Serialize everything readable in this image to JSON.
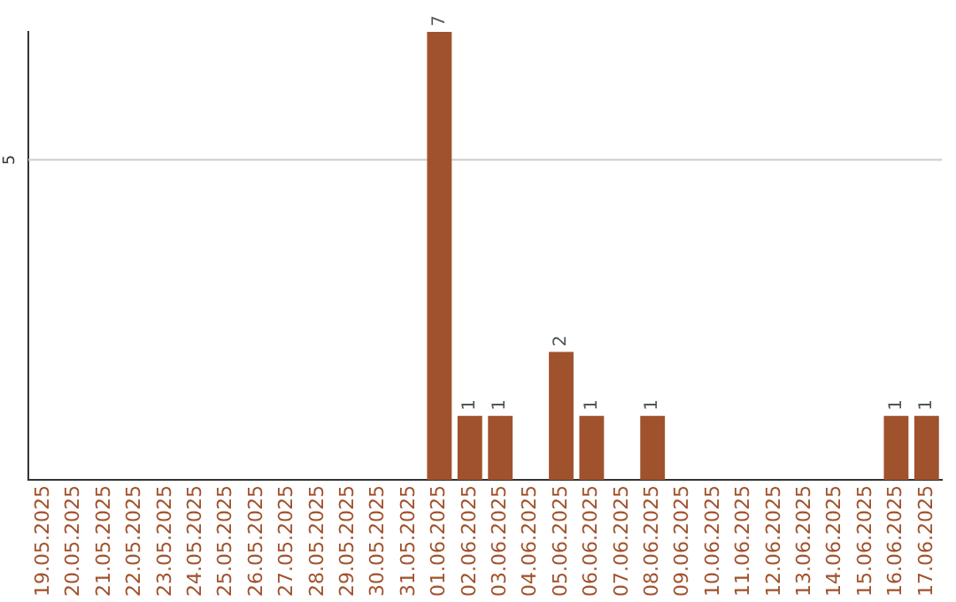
{
  "chart_data": {
    "type": "bar",
    "categories": [
      "19.05.2025",
      "20.05.2025",
      "21.05.2025",
      "22.05.2025",
      "23.05.2025",
      "24.05.2025",
      "25.05.2025",
      "26.05.2025",
      "27.05.2025",
      "28.05.2025",
      "29.05.2025",
      "30.05.2025",
      "31.05.2025",
      "01.06.2025",
      "02.06.2025",
      "03.06.2025",
      "04.06.2025",
      "05.06.2025",
      "06.06.2025",
      "07.06.2025",
      "08.06.2025",
      "09.06.2025",
      "10.06.2025",
      "11.06.2025",
      "12.06.2025",
      "13.06.2025",
      "14.06.2025",
      "15.06.2025",
      "16.06.2025",
      "17.06.2025"
    ],
    "values": [
      null,
      null,
      null,
      null,
      null,
      null,
      null,
      null,
      null,
      null,
      null,
      null,
      null,
      7,
      1,
      1,
      null,
      2,
      1,
      null,
      1,
      null,
      null,
      null,
      null,
      null,
      null,
      null,
      1,
      1
    ],
    "data_labels": true,
    "color": "#a0522d",
    "ylim": [
      0,
      7
    ],
    "ref_lines": [
      {
        "axis": "y",
        "value": 5,
        "label": "5",
        "color": "#cccccc"
      }
    ]
  }
}
